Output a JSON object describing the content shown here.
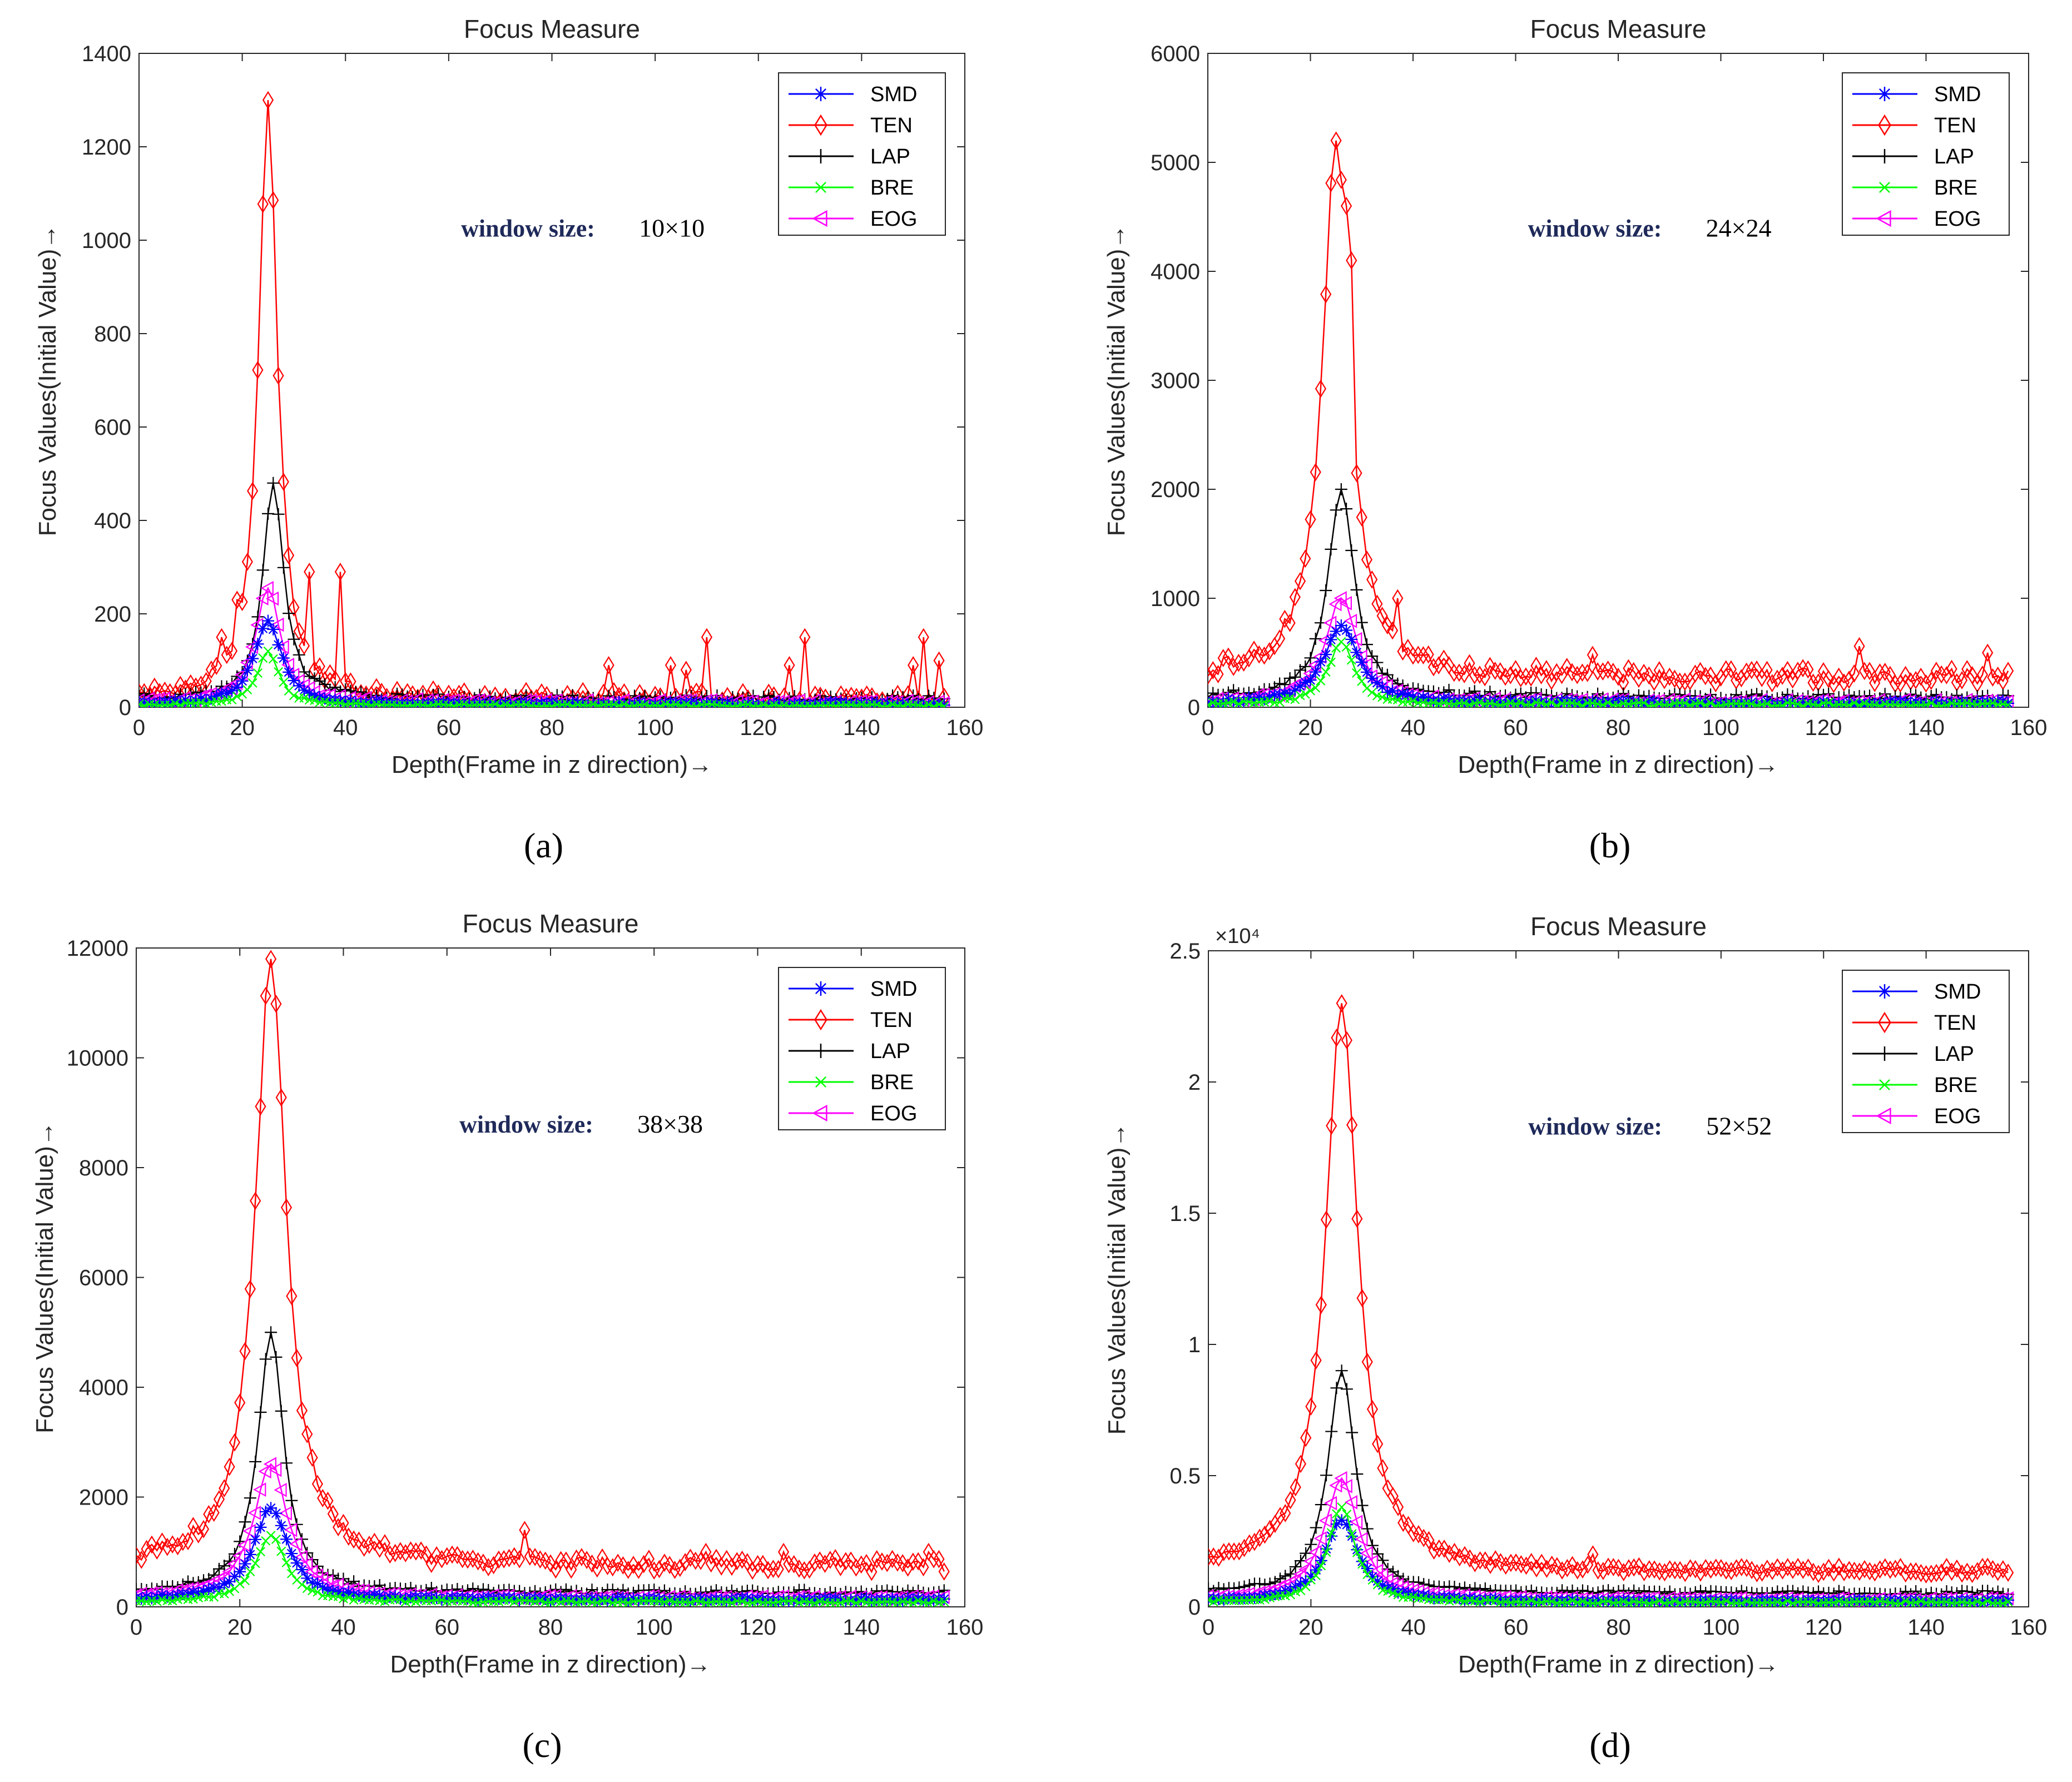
{
  "colors": {
    "SMD": "#0000ff",
    "TEN": "#ff0000",
    "LAP": "#000000",
    "BRE": "#00ff00",
    "EOG": "#ff00ff"
  },
  "legend_entries": [
    "SMD",
    "TEN",
    "LAP",
    "BRE",
    "EOG"
  ],
  "markers": {
    "SMD": "asterisk",
    "TEN": "diamond",
    "LAP": "plus",
    "BRE": "x",
    "EOG": "triangle-left"
  },
  "window_size_label": "window size:",
  "chart_data": [
    {
      "panel": "(a)",
      "type": "line",
      "title": "Focus Measure",
      "xlabel": "Depth(Frame in z direction)→",
      "ylabel": "Focus Values(Initial Value)→",
      "xlim": [
        0,
        160
      ],
      "ylim": [
        0,
        1400
      ],
      "xticks": [
        "0",
        "20",
        "40",
        "60",
        "80",
        "100",
        "120",
        "140",
        "160"
      ],
      "yticks": [
        "0",
        "200",
        "400",
        "600",
        "800",
        "1000",
        "1200",
        "1400"
      ],
      "exponent": "",
      "legend_position": "top-right",
      "annotation_size": "10×10",
      "series": [
        {
          "name": "SMD",
          "peak_x": 25,
          "peak": 185,
          "width": 3.2,
          "base": 5,
          "noise": 8
        },
        {
          "name": "TEN",
          "peak_x": 25,
          "peak": 1300,
          "width": 2.2,
          "base": 12,
          "noise": 30,
          "extra_points": [
            [
              39,
              290
            ],
            [
              33,
              290
            ],
            [
              16,
              150
            ],
            [
              19,
              230
            ],
            [
              91,
              90
            ],
            [
              103,
              90
            ],
            [
              106,
              80
            ],
            [
              110,
              150
            ],
            [
              126,
              90
            ],
            [
              129,
              150
            ],
            [
              150,
              90
            ],
            [
              152,
              150
            ],
            [
              155,
              100
            ]
          ]
        },
        {
          "name": "LAP",
          "peak_x": 26,
          "peak": 480,
          "width": 2.4,
          "base": 15,
          "noise": 15
        },
        {
          "name": "BRE",
          "peak_x": 25,
          "peak": 120,
          "width": 2.5,
          "base": 3,
          "noise": 5
        },
        {
          "name": "EOG",
          "peak_x": 25,
          "peak": 255,
          "width": 2.8,
          "base": 8,
          "noise": 10
        }
      ]
    },
    {
      "panel": "(b)",
      "type": "line",
      "title": "Focus Measure",
      "xlabel": "Depth(Frame in z direction)→",
      "ylabel": "Focus Values(Initial Value)→",
      "xlim": [
        0,
        160
      ],
      "ylim": [
        0,
        6000
      ],
      "xticks": [
        "0",
        "20",
        "40",
        "60",
        "80",
        "100",
        "120",
        "140",
        "160"
      ],
      "yticks": [
        "0",
        "1000",
        "2000",
        "3000",
        "4000",
        "5000",
        "6000"
      ],
      "exponent": "",
      "legend_position": "top-right",
      "annotation_size": "24×24",
      "series": [
        {
          "name": "SMD",
          "peak_x": 26,
          "peak": 750,
          "width": 4.0,
          "base": 30,
          "noise": 40
        },
        {
          "name": "TEN",
          "peak_x": 25,
          "peak": 5200,
          "width": 3.2,
          "base": 250,
          "noise": 150,
          "extra_points": [
            [
              27,
              4600
            ],
            [
              28,
              4100
            ],
            [
              37,
              1000
            ],
            [
              75,
              480
            ],
            [
              127,
              560
            ],
            [
              152,
              500
            ]
          ]
        },
        {
          "name": "LAP",
          "peak_x": 26,
          "peak": 2000,
          "width": 3.0,
          "base": 80,
          "noise": 60
        },
        {
          "name": "BRE",
          "peak_x": 26,
          "peak": 600,
          "width": 3.0,
          "base": 20,
          "noise": 30
        },
        {
          "name": "EOG",
          "peak_x": 26,
          "peak": 1000,
          "width": 3.6,
          "base": 40,
          "noise": 40
        }
      ]
    },
    {
      "panel": "(c)",
      "type": "line",
      "title": "Focus Measure",
      "xlabel": "Depth(Frame in z direction)→",
      "ylabel": "Focus Values(Initial Value)→",
      "xlim": [
        0,
        160
      ],
      "ylim": [
        0,
        12000
      ],
      "xticks": [
        "0",
        "20",
        "40",
        "60",
        "80",
        "100",
        "120",
        "140",
        "160"
      ],
      "yticks": [
        "0",
        "2000",
        "4000",
        "6000",
        "8000",
        "10000",
        "12000"
      ],
      "exponent": "",
      "legend_position": "top-right",
      "annotation_size": "38×38",
      "series": [
        {
          "name": "SMD",
          "peak_x": 26,
          "peak": 1800,
          "width": 4.0,
          "base": 120,
          "noise": 60
        },
        {
          "name": "TEN",
          "peak_x": 26,
          "peak": 11800,
          "width": 3.6,
          "base": 700,
          "noise": 250,
          "extra_points": [
            [
              75,
              1400
            ],
            [
              110,
              1000
            ],
            [
              125,
              1000
            ],
            [
              153,
              1000
            ]
          ]
        },
        {
          "name": "LAP",
          "peak_x": 26,
          "peak": 5000,
          "width": 3.0,
          "base": 250,
          "noise": 80
        },
        {
          "name": "BRE",
          "peak_x": 26,
          "peak": 1300,
          "width": 3.5,
          "base": 80,
          "noise": 50
        },
        {
          "name": "EOG",
          "peak_x": 26,
          "peak": 2600,
          "width": 4.0,
          "base": 150,
          "noise": 60
        }
      ]
    },
    {
      "panel": "(d)",
      "type": "line",
      "title": "Focus Measure",
      "xlabel": "Depth(Frame in z direction)→",
      "ylabel": "Focus Values(Initial Value)→",
      "xlim": [
        0,
        160
      ],
      "ylim": [
        0,
        25000
      ],
      "xticks": [
        "0",
        "20",
        "40",
        "60",
        "80",
        "100",
        "120",
        "140",
        "160"
      ],
      "yticks": [
        "0",
        "0.5",
        "1",
        "1.5",
        "2",
        "2.5"
      ],
      "exponent": "×10⁴",
      "legend_position": "top-right",
      "annotation_size": "52×52",
      "series": [
        {
          "name": "SMD",
          "peak_x": 26,
          "peak": 3300,
          "width": 4.0,
          "base": 200,
          "noise": 100
        },
        {
          "name": "TEN",
          "peak_x": 26,
          "peak": 23000,
          "width": 3.8,
          "base": 1300,
          "noise": 300,
          "extra_points": [
            [
              75,
              2000
            ]
          ]
        },
        {
          "name": "LAP",
          "peak_x": 26,
          "peak": 9000,
          "width": 3.2,
          "base": 500,
          "noise": 150
        },
        {
          "name": "BRE",
          "peak_x": 26,
          "peak": 3800,
          "width": 3.2,
          "base": 150,
          "noise": 100
        },
        {
          "name": "EOG",
          "peak_x": 26,
          "peak": 4900,
          "width": 4.0,
          "base": 250,
          "noise": 100
        }
      ]
    }
  ]
}
